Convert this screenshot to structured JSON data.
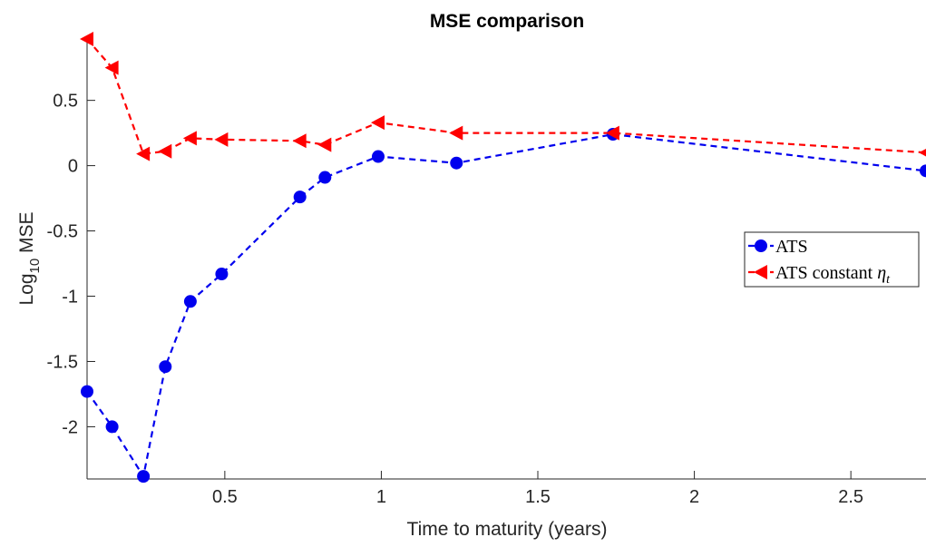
{
  "chart_data": {
    "type": "line",
    "title": "MSE comparison",
    "xlabel": "Time to maturity (years)",
    "ylabel_main": "Log",
    "ylabel_sub": "10",
    "ylabel_rest": " MSE",
    "xlim": [
      0.06,
      2.74
    ],
    "ylim": [
      -2.4,
      0.97
    ],
    "xticks": [
      {
        "value": 0.5,
        "label": "0.5"
      },
      {
        "value": 1,
        "label": "1"
      },
      {
        "value": 1.5,
        "label": "1.5"
      },
      {
        "value": 2,
        "label": "2"
      },
      {
        "value": 2.5,
        "label": "2.5"
      }
    ],
    "yticks": [
      {
        "value": 0.5,
        "label": "0.5"
      },
      {
        "value": 0,
        "label": "0"
      },
      {
        "value": -0.5,
        "label": "-0.5"
      },
      {
        "value": -1,
        "label": "-1"
      },
      {
        "value": -1.5,
        "label": "-1.5"
      },
      {
        "value": -2,
        "label": "-2"
      }
    ],
    "grid": false,
    "legend_position": "right",
    "series": [
      {
        "name": "ATS",
        "color": "#0000ee",
        "marker": "circle",
        "line_style": "dashed",
        "x": [
          0.06,
          0.14,
          0.24,
          0.31,
          0.39,
          0.49,
          0.74,
          0.82,
          0.99,
          1.24,
          1.74,
          2.74
        ],
        "y": [
          -1.73,
          -2.0,
          -2.38,
          -1.54,
          -1.04,
          -0.83,
          -0.24,
          -0.09,
          0.07,
          0.02,
          0.24,
          -0.04
        ]
      },
      {
        "name_main": "ATS constant ",
        "name_symbol": "η",
        "name_sub": "t",
        "color": "#ff0000",
        "marker": "triangle-left",
        "line_style": "dashed",
        "x": [
          0.06,
          0.14,
          0.24,
          0.31,
          0.39,
          0.49,
          0.74,
          0.82,
          0.99,
          1.24,
          1.74,
          2.74
        ],
        "y": [
          0.97,
          0.75,
          0.09,
          0.11,
          0.21,
          0.2,
          0.19,
          0.16,
          0.33,
          0.25,
          0.25,
          0.1
        ]
      }
    ]
  }
}
